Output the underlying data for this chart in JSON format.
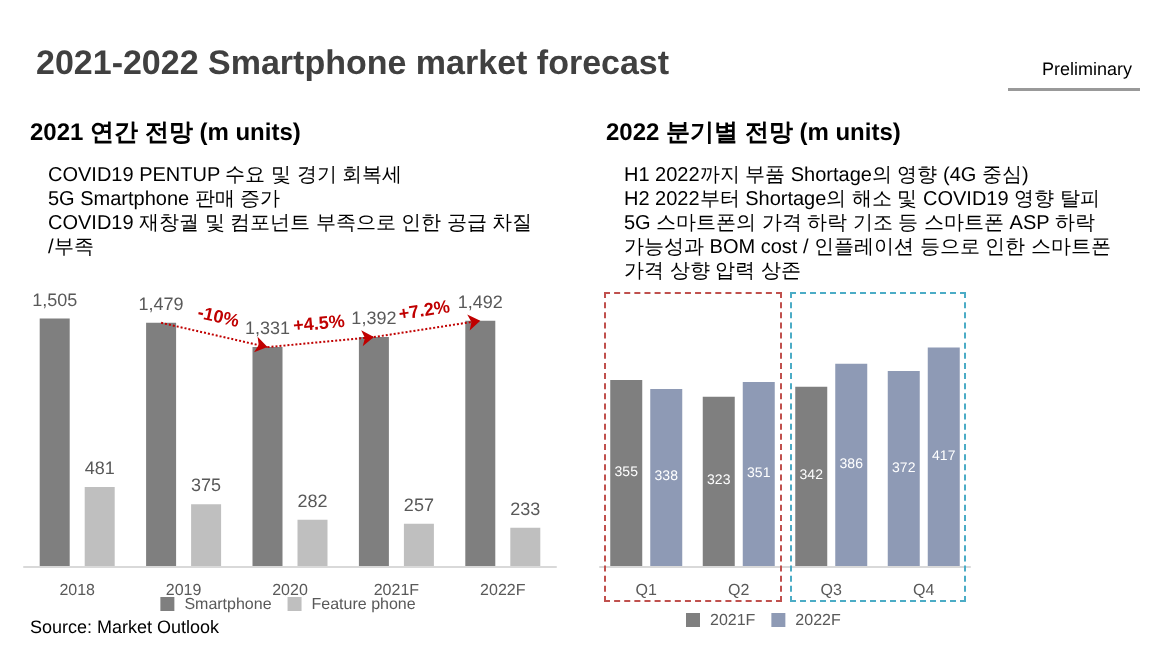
{
  "chart_data": [
    {
      "type": "bar",
      "title": "2021-2022 Smartphone market forecast",
      "subtitle": "2021 연간 전망 (m units)",
      "categories": [
        "2018",
        "2019",
        "2020",
        "2021F",
        "2022F"
      ],
      "series": [
        {
          "name": "Smartphone",
          "color": "#7f7f7f",
          "values": [
            1505,
            1479,
            1331,
            1392,
            1492
          ],
          "value_labels": [
            "1,505",
            "1,479",
            "1,331",
            "1,392",
            "1,492"
          ]
        },
        {
          "name": "Feature phone",
          "color": "#bfbfbf",
          "values": [
            481,
            375,
            282,
            257,
            233
          ],
          "value_labels": [
            "481",
            "375",
            "282",
            "257",
            "233"
          ]
        }
      ],
      "legend": "bottom",
      "annotations": [
        "COVID19 PENTUP 수요 및 경기 회복세",
        "5G Smartphone 판매 증가",
        "COVID19 재창궐 및 컴포넌트 부족으로 인한 공급 차질/부족",
        {
          "text": "-10%",
          "x": "2020",
          "y": 1331
        },
        {
          "text": "+4.5%",
          "x": "2021F",
          "y": 1392
        },
        {
          "text": "+7.2%",
          "x": "2022F",
          "y": 1492
        },
        "Source: Market Outlook"
      ]
    },
    {
      "type": "bar",
      "title": "2022 분기별 전망 (m units)",
      "categories": [
        "Q1",
        "Q2",
        "Q3",
        "Q4"
      ],
      "series": [
        {
          "name": "2021F",
          "color": "#7f7f7f",
          "colors": [
            "#7f7f7f",
            "#7f7f7f",
            "#7f7f7f",
            "#8e9ab5"
          ],
          "values": [
            355,
            323,
            342,
            372
          ]
        },
        {
          "name": "2022F",
          "color": "#8e9ab5",
          "values": [
            338,
            351,
            386,
            417
          ]
        }
      ],
      "data_labels": true,
      "legend": "bottom",
      "annotations": [
        "Preliminary",
        "H1 2022까지 부품 Shortage의 영향 (4G 중심)",
        "H2 2022부터 Shortage의 해소 및 COVID19 영향 탈피",
        "5G 스마트폰의 가격 하락 기조 등 스마트폰 ASP 하락 가능성과 BOM cost / 인플레이션 등으로 인한 스마트폰 가격 상향 압력 상존"
      ]
    }
  ]
}
